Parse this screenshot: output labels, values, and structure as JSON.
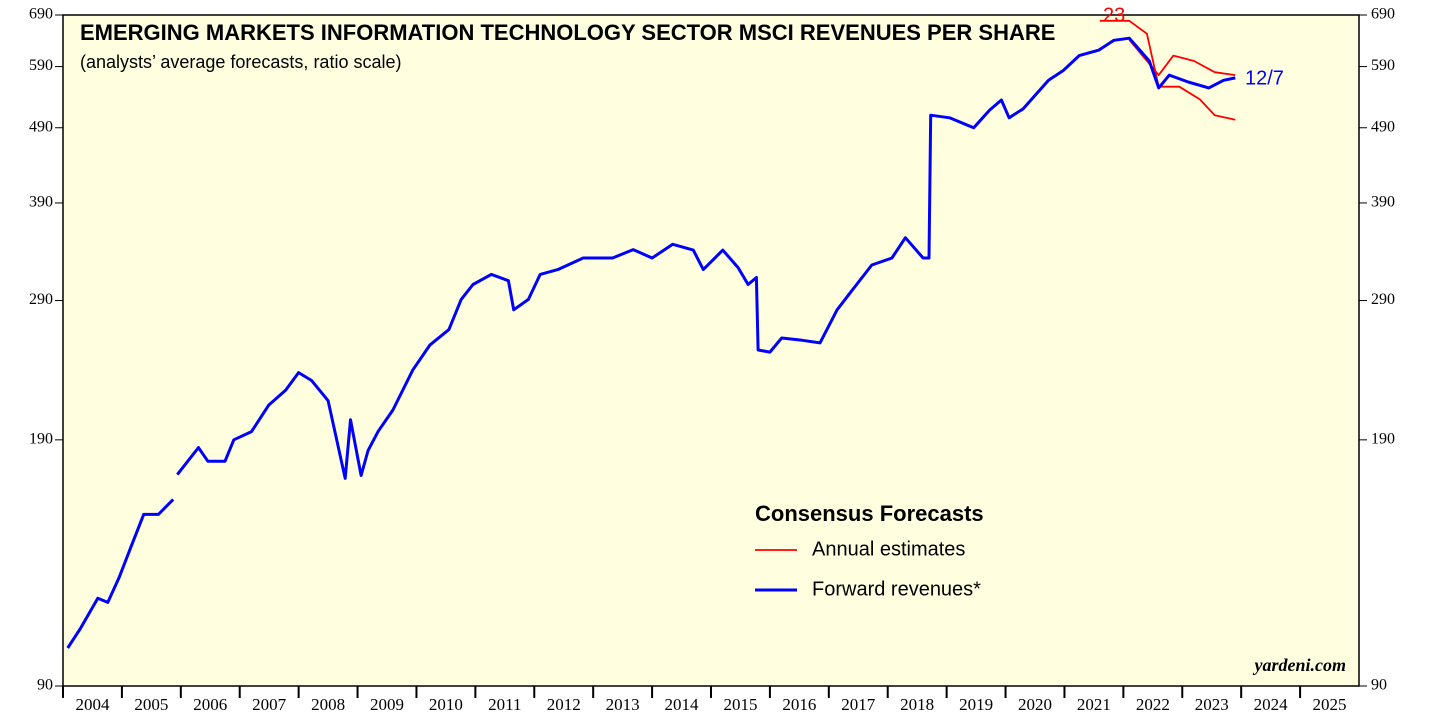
{
  "chart_data": {
    "type": "line",
    "title": "EMERGING MARKETS INFORMATION TECHNOLOGY SECTOR MSCI REVENUES PER SHARE",
    "subtitle": "(analysts’ average forecasts, ratio scale)",
    "legend_title": "Consensus Forecasts",
    "source": "yardeni.com",
    "annotations": [
      {
        "text": "23",
        "color": "#ff0000"
      },
      {
        "text": "12/7",
        "color": "#0000ff"
      }
    ],
    "log_scale": true,
    "xlim": [
      2004,
      2026
    ],
    "xticks": [
      2004,
      2005,
      2006,
      2007,
      2008,
      2009,
      2010,
      2011,
      2012,
      2013,
      2014,
      2015,
      2016,
      2017,
      2018,
      2019,
      2020,
      2021,
      2022,
      2023,
      2024,
      2025
    ],
    "ylim": [
      90,
      690
    ],
    "yticks": [
      90,
      190,
      290,
      390,
      490,
      590,
      690
    ],
    "series": [
      {
        "name": "Annual estimates",
        "color": "#ff0000",
        "x": [
          2022.1,
          2022.6,
          2022.85,
          2023.2,
          2023.55,
          2023.9,
          2023.0,
          2021.6,
          2022.1,
          2022.4,
          2022.6,
          2022.95,
          2023.3,
          2023.55,
          2023.9
        ],
        "values": [
          640,
          575,
          610,
          600,
          580,
          575,
          null,
          678,
          678,
          652,
          555,
          555,
          534,
          509,
          502
        ]
      },
      {
        "name": "Forward revenues*",
        "color": "#0000ff",
        "x": [
          2004.08,
          2004.29,
          2004.59,
          2004.76,
          2004.95,
          2005.15,
          2005.37,
          2005.62,
          2005.87,
          2005.9,
          2005.94,
          2006.3,
          2006.46,
          2006.75,
          2006.9,
          2007.2,
          2007.49,
          2007.78,
          2008.0,
          2008.22,
          2008.5,
          2008.79,
          2008.88,
          2009.06,
          2009.18,
          2009.35,
          2009.6,
          2009.94,
          2010.23,
          2010.55,
          2010.76,
          2010.96,
          2011.27,
          2011.56,
          2011.65,
          2011.9,
          2012.1,
          2012.4,
          2012.83,
          2013.33,
          2013.68,
          2014.0,
          2014.35,
          2014.7,
          2014.87,
          2015.2,
          2015.46,
          2015.63,
          2015.77,
          2015.8,
          2016.0,
          2016.2,
          2016.55,
          2016.85,
          2017.14,
          2017.4,
          2017.73,
          2018.07,
          2018.3,
          2018.6,
          2018.7,
          2018.73,
          2019.05,
          2019.46,
          2019.73,
          2019.93,
          2020.06,
          2020.3,
          2020.73,
          2020.98,
          2021.25,
          2021.58,
          2021.84,
          2022.1,
          2022.44,
          2022.6,
          2022.78,
          2023.1,
          2023.45,
          2023.7,
          2023.9
        ],
        "values": [
          101,
          107,
          117.5,
          116,
          125,
          137,
          151.5,
          151.5,
          158.6,
          null,
          171,
          185.6,
          178,
          178,
          190,
          194.8,
          211,
          221,
          233,
          227.5,
          214,
          169,
          202,
          170.5,
          184,
          195,
          208,
          235,
          253.5,
          265.5,
          291,
          304.5,
          314,
          308,
          282,
          291,
          314,
          318.6,
          330,
          330,
          338.5,
          330,
          344,
          338,
          318.6,
          338,
          320.5,
          304.5,
          311,
          249.6,
          248,
          258.8,
          257,
          255,
          282,
          299.5,
          323,
          330,
          351,
          330,
          330,
          509,
          505,
          490,
          517,
          533,
          505,
          519,
          566,
          583,
          610,
          620,
          639,
          643,
          600,
          553,
          575,
          563,
          553,
          566,
          570
        ]
      }
    ]
  }
}
